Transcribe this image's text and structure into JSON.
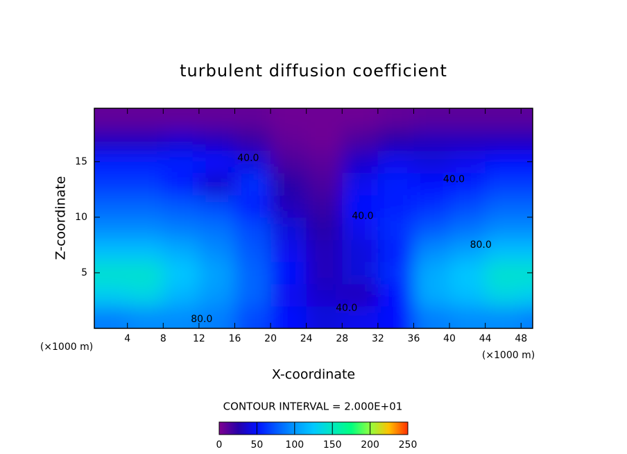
{
  "chart_data": {
    "type": "contour",
    "title": "turbulent diffusion coefficient",
    "x_label": "X-coordinate",
    "y_label": "Z-coordinate",
    "x_unit_label": "(×1000 m)",
    "contour_interval_label": "CONTOUR INTERVAL = 2.000E+01",
    "xlim": [
      0.3,
      49.3
    ],
    "ylim": [
      0,
      19.8
    ],
    "xticks": [
      4,
      8,
      12,
      16,
      20,
      24,
      28,
      32,
      36,
      40,
      44,
      48
    ],
    "yticks": [
      5,
      10,
      15
    ],
    "x": [
      2,
      6,
      10,
      14,
      18,
      22,
      26,
      30,
      34,
      38,
      42,
      46,
      50
    ],
    "y": [
      1,
      3,
      5,
      7,
      9,
      11,
      13,
      15,
      17,
      19
    ],
    "z": [
      [
        90,
        95,
        95,
        90,
        70,
        50,
        40,
        45,
        50,
        90,
        95,
        95,
        90
      ],
      [
        130,
        135,
        115,
        100,
        80,
        45,
        35,
        30,
        50,
        110,
        120,
        135,
        130
      ],
      [
        145,
        145,
        125,
        105,
        80,
        50,
        30,
        40,
        60,
        110,
        125,
        145,
        145
      ],
      [
        120,
        120,
        110,
        95,
        75,
        45,
        30,
        40,
        55,
        95,
        105,
        120,
        120
      ],
      [
        95,
        95,
        90,
        85,
        70,
        40,
        25,
        45,
        60,
        75,
        85,
        95,
        95
      ],
      [
        80,
        80,
        75,
        70,
        55,
        30,
        20,
        50,
        55,
        60,
        70,
        80,
        80
      ],
      [
        65,
        65,
        55,
        35,
        60,
        25,
        15,
        45,
        55,
        50,
        55,
        65,
        65
      ],
      [
        55,
        55,
        55,
        50,
        40,
        15,
        10,
        35,
        45,
        40,
        45,
        50,
        50
      ],
      [
        30,
        30,
        35,
        30,
        20,
        8,
        5,
        15,
        25,
        30,
        30,
        30,
        30
      ],
      [
        8,
        8,
        8,
        8,
        8,
        5,
        5,
        5,
        8,
        10,
        10,
        10,
        10
      ]
    ],
    "colors": [
      "#7f0090",
      "#2800a8",
      "#0010ff",
      "#0058ff",
      "#0098ff",
      "#00c8ff",
      "#00e8c0",
      "#00ff80",
      "#90ff40",
      "#ffc000",
      "#ff3000"
    ],
    "colorbar": {
      "lim": [
        0,
        250
      ],
      "ticks": [
        0,
        50,
        100,
        150,
        200,
        250
      ]
    },
    "contour_labels": [
      {
        "text": "40.0",
        "x": 17.5,
        "y": 15.3
      },
      {
        "text": "40.0",
        "x": 40.5,
        "y": 13.4
      },
      {
        "text": "40.0",
        "x": 30.3,
        "y": 10.1
      },
      {
        "text": "40.0",
        "x": 28.5,
        "y": 1.8
      },
      {
        "text": "80.0",
        "x": 12.3,
        "y": 0.8
      },
      {
        "text": "80.0",
        "x": 43.5,
        "y": 7.5
      }
    ]
  }
}
